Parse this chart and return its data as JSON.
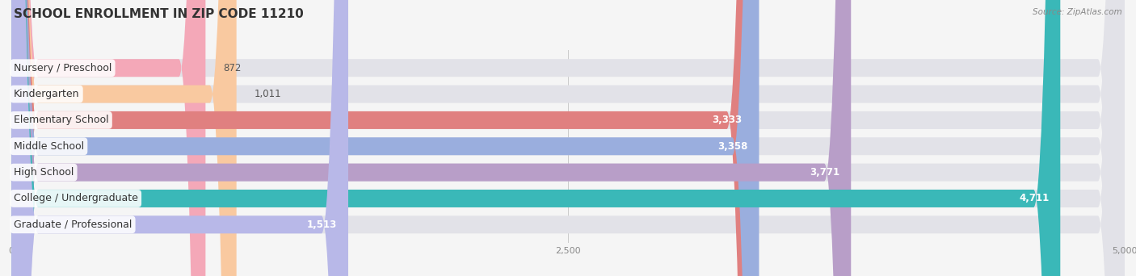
{
  "title": "SCHOOL ENROLLMENT IN ZIP CODE 11210",
  "source": "Source: ZipAtlas.com",
  "categories": [
    "Nursery / Preschool",
    "Kindergarten",
    "Elementary School",
    "Middle School",
    "High School",
    "College / Undergraduate",
    "Graduate / Professional"
  ],
  "values": [
    872,
    1011,
    3333,
    3358,
    3771,
    4711,
    1513
  ],
  "bar_colors": [
    "#f4a8b8",
    "#f9c9a0",
    "#e08080",
    "#9aaede",
    "#b89ec8",
    "#3ab8b8",
    "#b8b8e8"
  ],
  "xlim": [
    0,
    5000
  ],
  "xticks": [
    0,
    2500,
    5000
  ],
  "xtick_labels": [
    "0",
    "2,500",
    "5,000"
  ],
  "value_labels": [
    "872",
    "1,011",
    "3,333",
    "3,358",
    "3,771",
    "4,711",
    "1,513"
  ],
  "background_color": "#f5f5f5",
  "bar_background_color": "#e2e2e8",
  "title_fontsize": 11,
  "label_fontsize": 9,
  "value_fontsize": 8.5,
  "bar_height": 0.68,
  "value_threshold": 1500
}
